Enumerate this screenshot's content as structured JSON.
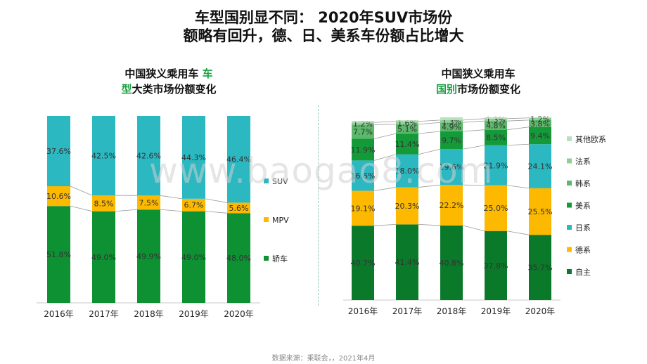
{
  "page": {
    "title_line1": "车型国别显不同： 2020年SUV市场份",
    "title_line2": "额略有回升，德、日、美系车份额占比增大",
    "watermark": "www.baogao8.com",
    "source": "数据来源：乘联会，，2021年4月"
  },
  "left_chart": {
    "title_line1": "中国狭义乘用车",
    "title_green1": "车",
    "title_green2": "型",
    "title_line2": "大类市场份额变化"
  },
  "right_chart": {
    "title_line1": "中国狭义乘用车",
    "title_green": "国别",
    "title_line2": "市场份额变化"
  },
  "colors": {
    "suv": "#2bb8c1",
    "mpv": "#fcb900",
    "sedan": "#0d9132",
    "zizhu": "#0a7a2a",
    "dexi": "#fcb900",
    "rixi": "#2bb8c1",
    "meixi": "#159a3a",
    "hanxi": "#5cb86a",
    "faxi": "#8fcf96",
    "qita": "#b9e0bd"
  },
  "chart_data": [
    {
      "type": "bar",
      "stacked": true,
      "categories": [
        "2016年",
        "2017年",
        "2018年",
        "2019年",
        "2020年"
      ],
      "series": [
        {
          "name": "轿车",
          "values": [
            51.8,
            49.0,
            49.9,
            49.0,
            48.0
          ],
          "labels": [
            "51.8%",
            "49.0%",
            "49.9%",
            "49.0%",
            "48.0%"
          ]
        },
        {
          "name": "MPV",
          "values": [
            10.6,
            8.5,
            7.5,
            6.7,
            5.6
          ],
          "labels": [
            "10.6%",
            "8.5%",
            "7.5%",
            "6.7%",
            "5.6%"
          ]
        },
        {
          "name": "SUV",
          "values": [
            37.6,
            42.5,
            42.6,
            44.3,
            46.4
          ],
          "labels": [
            "37.6%",
            "42.5%",
            "42.6%",
            "44.3%",
            "46.4%"
          ]
        }
      ],
      "legend": [
        "SUV",
        "MPV",
        "轿车"
      ],
      "ylim": [
        0,
        100
      ]
    },
    {
      "type": "bar",
      "stacked": true,
      "categories": [
        "2016年",
        "2017年",
        "2018年",
        "2019年",
        "2020年"
      ],
      "series": [
        {
          "name": "自主",
          "values": [
            40.7,
            41.4,
            40.8,
            37.8,
            35.7
          ],
          "labels": [
            "40.7%",
            "41.4%",
            "40.8%",
            "37.8%",
            "35.7%"
          ]
        },
        {
          "name": "德系",
          "values": [
            19.1,
            20.3,
            22.2,
            25.0,
            25.5
          ],
          "labels": [
            "19.1%",
            "20.3%",
            "22.2%",
            "25.0%",
            "25.5%"
          ]
        },
        {
          "name": "日系",
          "values": [
            16.6,
            18.0,
            19.6,
            21.9,
            24.1
          ],
          "labels": [
            "16.6%",
            "18.0%",
            "19.6%",
            "21.9%",
            "24.1%"
          ]
        },
        {
          "name": "美系",
          "values": [
            11.9,
            11.4,
            9.7,
            8.5,
            9.4
          ],
          "labels": [
            "11.9%",
            "11.4%",
            "9.7%",
            "8.5%",
            "9.4%"
          ]
        },
        {
          "name": "韩系",
          "values": [
            7.7,
            5.1,
            4.9,
            4.8,
            3.8
          ],
          "labels": [
            "7.7%",
            "5.1%",
            "4.9%",
            "4.8%",
            "3.8%"
          ]
        },
        {
          "name": "法系",
          "values": [
            1.2,
            1.6,
            1.3,
            1.3,
            1.2
          ],
          "labels": [
            "1.2%",
            "1.6%",
            "1.3%",
            "1.3%",
            "1.2%"
          ]
        },
        {
          "name": "其他欧系",
          "values": [
            0.8,
            0.6,
            1.5,
            0.7,
            0.3
          ],
          "labels": [
            "",
            "",
            "",
            "",
            ""
          ]
        }
      ],
      "legend": [
        "其他欧系",
        "法系",
        "韩系",
        "美系",
        "日系",
        "德系",
        "自主"
      ],
      "ylim": [
        0,
        100
      ]
    }
  ]
}
